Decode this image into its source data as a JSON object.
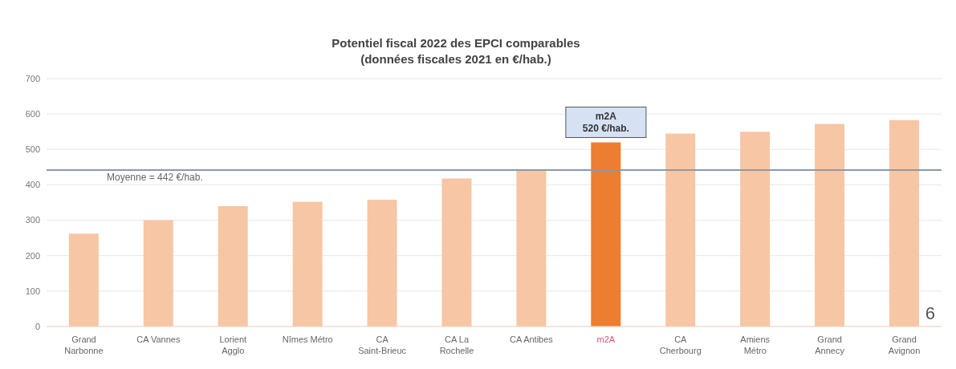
{
  "chart_data": {
    "type": "bar",
    "title": "Potentiel fiscal 2022 des EPCI comparables",
    "subtitle": "(données fiscales 2021 en €/hab.)",
    "categories": [
      "Grand Narbonne",
      "CA Vannes",
      "Lorient Agglo",
      "Nîmes Métro",
      "CA Saint-Brieuc",
      "CA La Rochelle",
      "CA Antibes",
      "m2A",
      "CA Cherbourg",
      "Amiens Métro",
      "Grand Annecy",
      "Grand Avignon"
    ],
    "values": [
      262,
      300,
      340,
      352,
      358,
      418,
      440,
      520,
      545,
      550,
      572,
      583
    ],
    "colors": [
      "#f7c6a5",
      "#f7c6a5",
      "#f7c6a5",
      "#f7c6a5",
      "#f7c6a5",
      "#f7c6a5",
      "#f7c6a5",
      "#ed7d31",
      "#f7c6a5",
      "#f7c6a5",
      "#f7c6a5",
      "#f7c6a5"
    ],
    "ylim": [
      0,
      700
    ],
    "yticks": [
      0,
      100,
      200,
      300,
      400,
      500,
      600,
      700
    ],
    "grid": "y",
    "ref_lines": [
      {
        "axis": "y",
        "value": 442,
        "label": "Moyenne = 442 €/hab.",
        "color": "#8c9aa6"
      }
    ],
    "annotations": [
      "m2A\n520 €/hab.",
      "6"
    ]
  }
}
